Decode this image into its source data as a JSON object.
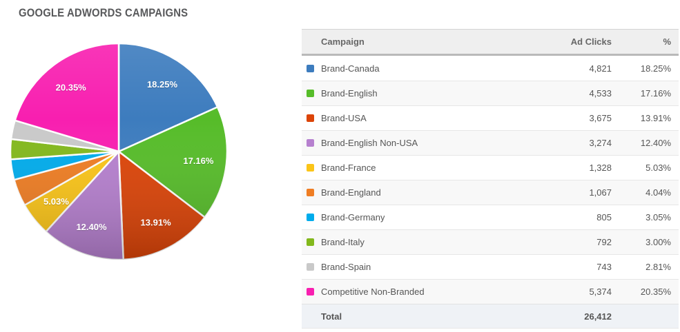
{
  "title": "GOOGLE ADWORDS CAMPAIGNS",
  "table": {
    "columns": [
      "Campaign",
      "Ad Clicks",
      "%"
    ],
    "rows": [
      {
        "campaign": "Brand-Canada",
        "ad_clicks": "4,821",
        "percent": "18.25%",
        "color": "#3D7CBE"
      },
      {
        "campaign": "Brand-English",
        "ad_clicks": "4,533",
        "percent": "17.16%",
        "color": "#56BC29"
      },
      {
        "campaign": "Brand-USA",
        "ad_clicks": "3,675",
        "percent": "13.91%",
        "color": "#DC4408"
      },
      {
        "campaign": "Brand-English Non-USA",
        "ad_clicks": "3,274",
        "percent": "12.40%",
        "color": "#B680CF"
      },
      {
        "campaign": "Brand-France",
        "ad_clicks": "1,328",
        "percent": "5.03%",
        "color": "#FBC518"
      },
      {
        "campaign": "Brand-England",
        "ad_clicks": "1,067",
        "percent": "4.04%",
        "color": "#EF7D23"
      },
      {
        "campaign": "Brand-Germany",
        "ad_clicks": "805",
        "percent": "3.05%",
        "color": "#00ACEC"
      },
      {
        "campaign": "Brand-Italy",
        "ad_clicks": "792",
        "percent": "3.00%",
        "color": "#82B81C"
      },
      {
        "campaign": "Brand-Spain",
        "ad_clicks": "743",
        "percent": "2.81%",
        "color": "#C9C9C9"
      },
      {
        "campaign": "Competitive Non-Branded",
        "ad_clicks": "5,374",
        "percent": "20.35%",
        "color": "#F81FB0"
      }
    ],
    "total": {
      "label": "Total",
      "ad_clicks": "26,412"
    }
  },
  "chart_data": {
    "type": "pie",
    "title": "GOOGLE ADWORDS CAMPAIGNS",
    "categories": [
      "Brand-Canada",
      "Brand-English",
      "Brand-USA",
      "Brand-English Non-USA",
      "Brand-France",
      "Brand-England",
      "Brand-Germany",
      "Brand-Italy",
      "Brand-Spain",
      "Competitive Non-Branded"
    ],
    "values": [
      18.25,
      17.16,
      13.91,
      12.4,
      5.03,
      4.04,
      3.05,
      3.0,
      2.81,
      20.35
    ],
    "ad_clicks": [
      4821,
      4533,
      3675,
      3274,
      1328,
      1067,
      805,
      792,
      743,
      5374
    ],
    "total_ad_clicks": 26412,
    "colors": [
      "#3D7CBE",
      "#56BC29",
      "#DC4408",
      "#B680CF",
      "#FBC518",
      "#EF7D23",
      "#00ACEC",
      "#82B81C",
      "#C9C9C9",
      "#F81FB0"
    ],
    "start_angle_deg": 0,
    "direction": "clockwise",
    "slice_label_min_pct": 5,
    "slice_label_color": "#FFFFFF",
    "slice_border_color": "#FFFFFF",
    "legend_position": "table-right"
  },
  "colors": {
    "title_text": "#58595B",
    "header_bg": "#EFEFEF",
    "header_border": "#B9B9B9",
    "row_alt_bg": "#F8F8F8",
    "total_row_bg": "#EFF2F6",
    "row_divider": "#E6E6E6",
    "body_text": "#555555"
  }
}
